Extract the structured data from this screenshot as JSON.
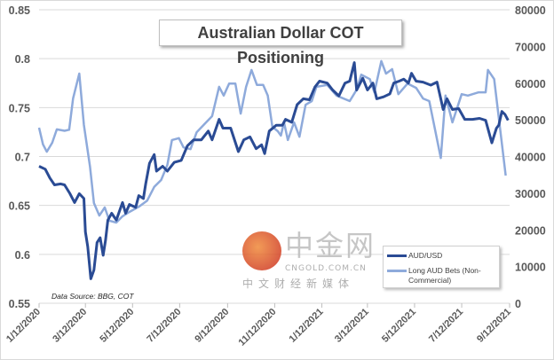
{
  "chart_data": {
    "type": "line",
    "title": "Australian Dollar COT Positioning",
    "annotation": "Data Source: BBG, COT",
    "legend_position": "bottom-right",
    "grid": true,
    "xlim": [
      "2020-01-12",
      "2021-09-12"
    ],
    "x_ticks": [
      "1/12/2020",
      "3/12/2020",
      "5/12/2020",
      "7/12/2020",
      "9/12/2020",
      "11/12/2020",
      "1/12/2021",
      "3/12/2021",
      "5/12/2021",
      "7/12/2021",
      "9/12/2021"
    ],
    "x_tick_dates": [
      "2020-01-12",
      "2020-03-12",
      "2020-05-12",
      "2020-07-12",
      "2020-09-12",
      "2020-11-12",
      "2021-01-12",
      "2021-03-12",
      "2021-05-12",
      "2021-07-12",
      "2021-09-12"
    ],
    "y_left": {
      "lim": [
        0.55,
        0.85
      ],
      "ticks": [
        "0.55",
        "0.6",
        "0.65",
        "0.7",
        "0.75",
        "0.8",
        "0.85"
      ]
    },
    "y_right": {
      "lim": [
        0,
        80000
      ],
      "ticks": [
        "0",
        "10000",
        "20000",
        "30000",
        "40000",
        "50000",
        "60000",
        "70000",
        "80000"
      ]
    },
    "series": [
      {
        "name": "AUD/USD",
        "axis": "left",
        "color": "#2a4b94",
        "points": [
          [
            "2020-01-12",
            0.69
          ],
          [
            "2020-01-20",
            0.687
          ],
          [
            "2020-01-26",
            0.678
          ],
          [
            "2020-02-01",
            0.671
          ],
          [
            "2020-02-09",
            0.672
          ],
          [
            "2020-02-14",
            0.671
          ],
          [
            "2020-02-21",
            0.662
          ],
          [
            "2020-02-27",
            0.653
          ],
          [
            "2020-03-04",
            0.662
          ],
          [
            "2020-03-10",
            0.657
          ],
          [
            "2020-03-12",
            0.623
          ],
          [
            "2020-03-15",
            0.608
          ],
          [
            "2020-03-19",
            0.575
          ],
          [
            "2020-03-23",
            0.584
          ],
          [
            "2020-03-27",
            0.612
          ],
          [
            "2020-03-31",
            0.617
          ],
          [
            "2020-04-04",
            0.599
          ],
          [
            "2020-04-07",
            0.614
          ],
          [
            "2020-04-10",
            0.635
          ],
          [
            "2020-04-15",
            0.642
          ],
          [
            "2020-04-21",
            0.635
          ],
          [
            "2020-04-29",
            0.653
          ],
          [
            "2020-05-03",
            0.642
          ],
          [
            "2020-05-08",
            0.651
          ],
          [
            "2020-05-16",
            0.648
          ],
          [
            "2020-05-20",
            0.66
          ],
          [
            "2020-05-26",
            0.657
          ],
          [
            "2020-05-29",
            0.672
          ],
          [
            "2020-06-03",
            0.693
          ],
          [
            "2020-06-09",
            0.702
          ],
          [
            "2020-06-12",
            0.685
          ],
          [
            "2020-06-20",
            0.69
          ],
          [
            "2020-06-26",
            0.685
          ],
          [
            "2020-07-05",
            0.694
          ],
          [
            "2020-07-14",
            0.696
          ],
          [
            "2020-07-22",
            0.711
          ],
          [
            "2020-07-30",
            0.717
          ],
          [
            "2020-08-09",
            0.717
          ],
          [
            "2020-08-18",
            0.726
          ],
          [
            "2020-08-23",
            0.717
          ],
          [
            "2020-09-01",
            0.738
          ],
          [
            "2020-09-06",
            0.729
          ],
          [
            "2020-09-16",
            0.729
          ],
          [
            "2020-09-26",
            0.705
          ],
          [
            "2020-10-03",
            0.717
          ],
          [
            "2020-10-11",
            0.72
          ],
          [
            "2020-10-19",
            0.708
          ],
          [
            "2020-10-26",
            0.712
          ],
          [
            "2020-10-30",
            0.703
          ],
          [
            "2020-11-05",
            0.726
          ],
          [
            "2020-11-14",
            0.732
          ],
          [
            "2020-11-22",
            0.732
          ],
          [
            "2020-11-26",
            0.738
          ],
          [
            "2020-12-04",
            0.735
          ],
          [
            "2020-12-11",
            0.753
          ],
          [
            "2020-12-19",
            0.759
          ],
          [
            "2020-12-27",
            0.758
          ],
          [
            "2021-01-03",
            0.771
          ],
          [
            "2021-01-09",
            0.777
          ],
          [
            "2021-01-19",
            0.775
          ],
          [
            "2021-01-26",
            0.768
          ],
          [
            "2021-02-03",
            0.762
          ],
          [
            "2021-02-11",
            0.775
          ],
          [
            "2021-02-17",
            0.777
          ],
          [
            "2021-02-23",
            0.796
          ],
          [
            "2021-02-26",
            0.768
          ],
          [
            "2021-03-06",
            0.78
          ],
          [
            "2021-03-12",
            0.768
          ],
          [
            "2021-03-19",
            0.775
          ],
          [
            "2021-03-24",
            0.759
          ],
          [
            "2021-04-02",
            0.761
          ],
          [
            "2021-04-10",
            0.764
          ],
          [
            "2021-04-15",
            0.775
          ],
          [
            "2021-04-22",
            0.777
          ],
          [
            "2021-04-28",
            0.779
          ],
          [
            "2021-05-04",
            0.775
          ],
          [
            "2021-05-08",
            0.785
          ],
          [
            "2021-05-14",
            0.777
          ],
          [
            "2021-05-23",
            0.776
          ],
          [
            "2021-06-02",
            0.773
          ],
          [
            "2021-06-10",
            0.776
          ],
          [
            "2021-06-18",
            0.748
          ],
          [
            "2021-06-23",
            0.759
          ],
          [
            "2021-06-30",
            0.748
          ],
          [
            "2021-07-08",
            0.749
          ],
          [
            "2021-07-16",
            0.738
          ],
          [
            "2021-07-26",
            0.738
          ],
          [
            "2021-08-04",
            0.739
          ],
          [
            "2021-08-12",
            0.737
          ],
          [
            "2021-08-20",
            0.714
          ],
          [
            "2021-08-26",
            0.729
          ],
          [
            "2021-08-29",
            0.732
          ],
          [
            "2021-09-02",
            0.746
          ],
          [
            "2021-09-06",
            0.743
          ],
          [
            "2021-09-10",
            0.737
          ]
        ]
      },
      {
        "name": "Long AUD Bets (Non-Commercial)",
        "axis": "right",
        "color": "#8eaadb",
        "points": [
          [
            "2020-01-12",
            47850
          ],
          [
            "2020-01-17",
            43300
          ],
          [
            "2020-01-22",
            41300
          ],
          [
            "2020-01-29",
            43750
          ],
          [
            "2020-02-04",
            47400
          ],
          [
            "2020-02-14",
            47000
          ],
          [
            "2020-02-20",
            47300
          ],
          [
            "2020-02-25",
            55800
          ],
          [
            "2020-03-04",
            62600
          ],
          [
            "2020-03-10",
            48600
          ],
          [
            "2020-03-18",
            37200
          ],
          [
            "2020-03-23",
            27300
          ],
          [
            "2020-03-30",
            23900
          ],
          [
            "2020-04-06",
            26100
          ],
          [
            "2020-04-12",
            22500
          ],
          [
            "2020-04-21",
            22000
          ],
          [
            "2020-04-29",
            23700
          ],
          [
            "2020-05-08",
            24900
          ],
          [
            "2020-05-20",
            26300
          ],
          [
            "2020-05-31",
            28000
          ],
          [
            "2020-06-09",
            31700
          ],
          [
            "2020-06-18",
            33600
          ],
          [
            "2020-06-26",
            37700
          ],
          [
            "2020-07-02",
            44500
          ],
          [
            "2020-07-11",
            45000
          ],
          [
            "2020-07-17",
            42500
          ],
          [
            "2020-07-26",
            42000
          ],
          [
            "2020-08-03",
            46600
          ],
          [
            "2020-08-12",
            48600
          ],
          [
            "2020-08-23",
            51000
          ],
          [
            "2020-09-01",
            59000
          ],
          [
            "2020-09-07",
            56600
          ],
          [
            "2020-09-14",
            59900
          ],
          [
            "2020-09-22",
            59900
          ],
          [
            "2020-09-29",
            51700
          ],
          [
            "2020-10-06",
            59000
          ],
          [
            "2020-10-13",
            63600
          ],
          [
            "2020-10-20",
            59500
          ],
          [
            "2020-10-28",
            59500
          ],
          [
            "2020-11-03",
            56600
          ],
          [
            "2020-11-09",
            48100
          ],
          [
            "2020-11-16",
            46900
          ],
          [
            "2020-11-20",
            45700
          ],
          [
            "2020-11-24",
            49300
          ],
          [
            "2020-11-29",
            44500
          ],
          [
            "2020-12-07",
            49300
          ],
          [
            "2020-12-14",
            45400
          ],
          [
            "2020-12-22",
            54100
          ],
          [
            "2020-12-30",
            55100
          ],
          [
            "2021-01-05",
            59000
          ],
          [
            "2021-01-19",
            59500
          ],
          [
            "2021-01-31",
            56600
          ],
          [
            "2021-02-17",
            55100
          ],
          [
            "2021-02-26",
            58200
          ],
          [
            "2021-03-04",
            62300
          ],
          [
            "2021-03-15",
            61100
          ],
          [
            "2021-03-21",
            57500
          ],
          [
            "2021-03-30",
            66000
          ],
          [
            "2021-04-05",
            62600
          ],
          [
            "2021-04-13",
            63800
          ],
          [
            "2021-04-21",
            57000
          ],
          [
            "2021-05-03",
            59900
          ],
          [
            "2021-05-14",
            58700
          ],
          [
            "2021-05-23",
            55800
          ],
          [
            "2021-05-31",
            55100
          ],
          [
            "2021-06-15",
            39600
          ],
          [
            "2021-06-21",
            56600
          ],
          [
            "2021-06-30",
            49300
          ],
          [
            "2021-07-12",
            57000
          ],
          [
            "2021-07-20",
            56600
          ],
          [
            "2021-08-03",
            57500
          ],
          [
            "2021-08-12",
            57500
          ],
          [
            "2021-08-15",
            63600
          ],
          [
            "2021-08-23",
            61100
          ],
          [
            "2021-09-07",
            34800
          ]
        ]
      }
    ]
  },
  "watermark": {
    "name_cn": "中金网",
    "domain": "CNGOLD.COM.CN",
    "tagline": "中文财经新媒体"
  }
}
